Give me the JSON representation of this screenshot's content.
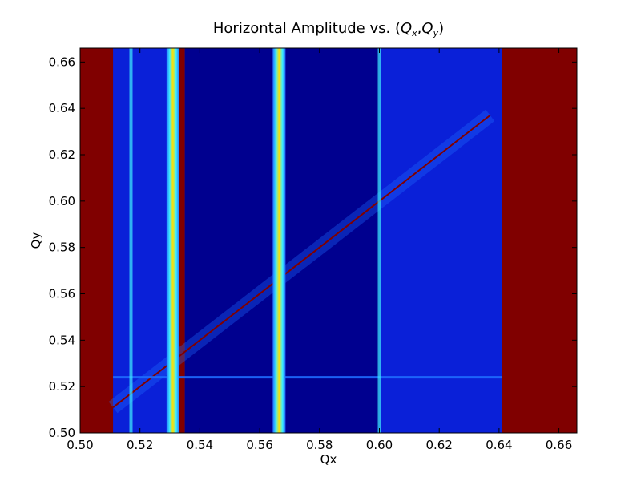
{
  "chart_data": {
    "type": "heatmap",
    "title_text": "Horizontal Amplitude vs. (",
    "title_qx": "Q",
    "title_qx_sub": "x",
    "title_sep": ",",
    "title_qy": "Q",
    "title_qy_sub": "y",
    "title_close": ")",
    "xlabel": "Qx",
    "ylabel": "Qy",
    "xlim": [
      0.5,
      0.666
    ],
    "ylim": [
      0.5,
      0.666
    ],
    "xticks": [
      "0.50",
      "0.52",
      "0.54",
      "0.56",
      "0.58",
      "0.60",
      "0.62",
      "0.64",
      "0.66"
    ],
    "yticks": [
      "0.50",
      "0.52",
      "0.54",
      "0.56",
      "0.58",
      "0.60",
      "0.62",
      "0.64",
      "0.66"
    ],
    "colormap": "jet",
    "colors": {
      "lost": "#800000",
      "background": "#0a20d8",
      "low": "#00008f",
      "mid": "#1e6cff",
      "resonance": "#3ff0ff",
      "peak": "#ffe000"
    },
    "regions": [
      {
        "kind": "lost",
        "x": [
          0.5,
          0.511
        ],
        "y": [
          0.5,
          0.666
        ]
      },
      {
        "kind": "lost",
        "x": [
          0.531,
          0.535
        ],
        "y": [
          0.5,
          0.666
        ]
      },
      {
        "kind": "lost",
        "x": [
          0.641,
          0.666
        ],
        "y": [
          0.5,
          0.666
        ]
      },
      {
        "kind": "low",
        "x": [
          0.535,
          0.6
        ],
        "y": [
          0.5,
          0.666
        ]
      }
    ],
    "vertical_resonances": [
      {
        "qx": 0.517,
        "strength": "weak"
      },
      {
        "qx": 0.531,
        "strength": "strong"
      },
      {
        "qx": 0.5665,
        "strength": "strong"
      },
      {
        "qx": 0.6,
        "strength": "weak"
      }
    ],
    "coupling_line": {
      "from": [
        0.511,
        0.511
      ],
      "to": [
        0.637,
        0.637
      ]
    },
    "horizontal_resonance": {
      "qy": 0.524,
      "x": [
        0.511,
        0.641
      ]
    }
  }
}
